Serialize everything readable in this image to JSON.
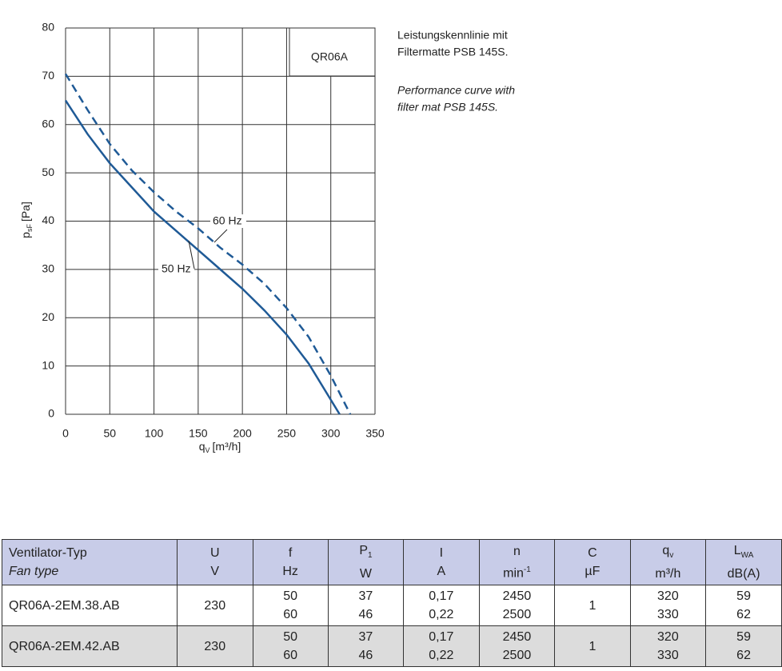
{
  "chart_data": {
    "type": "line",
    "annotation": "QR06A",
    "ylabel": {
      "main": "p",
      "sub": "sF",
      "unit": "[Pa]"
    },
    "xlabel": {
      "main": "q",
      "sub": "V",
      "unit": "[m³/h]"
    },
    "xlim": [
      0,
      350
    ],
    "xticks": [
      0,
      50,
      100,
      150,
      200,
      250,
      300,
      350
    ],
    "ylim": [
      0,
      80
    ],
    "yticks": [
      0,
      10,
      20,
      30,
      40,
      50,
      60,
      70,
      80
    ],
    "grid": true,
    "series": [
      {
        "name": "50 Hz",
        "color": "#1f5a96",
        "dash": false,
        "x": [
          0,
          25,
          50,
          75,
          100,
          125,
          150,
          175,
          200,
          225,
          250,
          275,
          300,
          310
        ],
        "values": [
          65,
          58,
          52,
          47,
          42,
          38,
          34,
          30,
          26,
          21.5,
          16.5,
          10.5,
          3,
          0
        ]
      },
      {
        "name": "60 Hz",
        "color": "#1f5a96",
        "dash": true,
        "x": [
          0,
          25,
          50,
          75,
          100,
          125,
          150,
          175,
          200,
          225,
          250,
          275,
          300,
          322
        ],
        "values": [
          70.5,
          63,
          56,
          50.5,
          46,
          42,
          38.5,
          34.5,
          31,
          27,
          22,
          16,
          8,
          0
        ]
      }
    ]
  },
  "notes": {
    "de": [
      "Leistungskennlinie mit",
      "Filtermatte PSB 145S."
    ],
    "en": [
      "Performance curve with",
      "filter mat  PSB 145S."
    ]
  },
  "table": {
    "header": [
      {
        "symbol": "Ventilator-Typ",
        "unit": "Fan type"
      },
      {
        "symbol": "U",
        "unit": "V"
      },
      {
        "symbol": "f",
        "unit": "Hz"
      },
      {
        "symbol": "P",
        "sub": "1",
        "unit": "W"
      },
      {
        "symbol": "I",
        "unit": "A"
      },
      {
        "symbol": "n",
        "unit": "min",
        "unit_sup": "-1"
      },
      {
        "symbol": "C",
        "unit": "µF"
      },
      {
        "symbol": "q",
        "sub": "v",
        "unit": "m³/h"
      },
      {
        "symbol": "L",
        "sub": "WA",
        "unit": "dB(A)"
      }
    ],
    "rows": [
      [
        "QR06A-2EM.38.AB",
        "230",
        [
          "50",
          "60"
        ],
        [
          "37",
          "46"
        ],
        [
          "0,17",
          "0,22"
        ],
        [
          "2450",
          "2500"
        ],
        "1",
        [
          "320",
          "330"
        ],
        [
          "59",
          "62"
        ]
      ],
      [
        "QR06A-2EM.42.AB",
        "230",
        [
          "50",
          "60"
        ],
        [
          "37",
          "46"
        ],
        [
          "0,17",
          "0,22"
        ],
        [
          "2450",
          "2500"
        ],
        "1",
        [
          "320",
          "330"
        ],
        [
          "59",
          "62"
        ]
      ]
    ]
  }
}
